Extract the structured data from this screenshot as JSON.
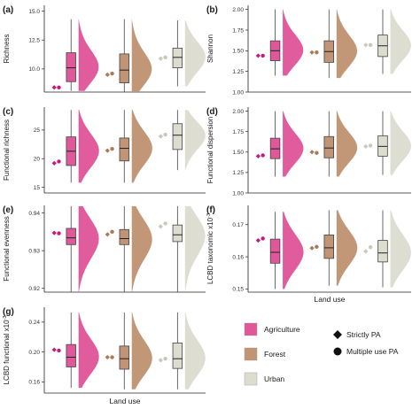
{
  "chart_data": [
    {
      "type": "raincloud",
      "panel": "(a)",
      "ylabel": "Richness",
      "ylim": [
        8.0,
        15.5
      ],
      "yticks": [
        "7.5",
        "10.0",
        "12.5",
        "15.0"
      ],
      "ytick_values": [
        7.5,
        10.0,
        12.5,
        15.0
      ],
      "xlabel": "",
      "categories": [
        "Agriculture",
        "Forest",
        "Urban"
      ],
      "box": [
        {
          "q1": 8.9,
          "median": 10.1,
          "q3": 11.4,
          "lo": 8.1,
          "hi": 14.3
        },
        {
          "q1": 8.8,
          "median": 9.9,
          "q3": 11.3,
          "lo": 8.0,
          "hi": 14.3
        },
        {
          "q1": 10.1,
          "median": 11.0,
          "q3": 11.8,
          "lo": 8.5,
          "hi": 14.2
        }
      ],
      "points": [
        {
          "strictly": 8.4,
          "multiple": 8.4
        },
        {
          "strictly": 9.5,
          "multiple": 9.6
        },
        {
          "strictly": 10.9,
          "multiple": 11.0
        }
      ]
    },
    {
      "type": "raincloud",
      "panel": "(b)",
      "ylabel": "Shannon",
      "ylim": [
        1.0,
        2.05
      ],
      "yticks": [
        "1.00",
        "1.25",
        "1.50",
        "1.75",
        "2.00"
      ],
      "ytick_values": [
        1.0,
        1.25,
        1.5,
        1.75,
        2.0
      ],
      "xlabel": "",
      "categories": [
        "Agriculture",
        "Forest",
        "Urban"
      ],
      "box": [
        {
          "q1": 1.38,
          "median": 1.5,
          "q3": 1.62,
          "lo": 1.2,
          "hi": 2.0
        },
        {
          "q1": 1.36,
          "median": 1.49,
          "q3": 1.62,
          "lo": 1.17,
          "hi": 2.0
        },
        {
          "q1": 1.43,
          "median": 1.56,
          "q3": 1.69,
          "lo": 1.22,
          "hi": 2.0
        }
      ],
      "points": [
        {
          "strictly": 1.44,
          "multiple": 1.44
        },
        {
          "strictly": 1.48,
          "multiple": 1.48
        },
        {
          "strictly": 1.57,
          "multiple": 1.57
        }
      ]
    },
    {
      "type": "raincloud",
      "panel": "(c)",
      "ylabel": "Functional richness",
      "ylim": [
        14.0,
        29.0
      ],
      "yticks": [
        "15",
        "20",
        "25"
      ],
      "ytick_values": [
        15,
        20,
        25
      ],
      "xlabel": "",
      "categories": [
        "Agriculture",
        "Forest",
        "Urban"
      ],
      "box": [
        {
          "q1": 18.8,
          "median": 21.3,
          "q3": 23.8,
          "lo": 15.8,
          "hi": 28.5
        },
        {
          "q1": 19.6,
          "median": 21.8,
          "q3": 23.6,
          "lo": 15.8,
          "hi": 28.5
        },
        {
          "q1": 21.6,
          "median": 24.1,
          "q3": 26.1,
          "lo": 18.0,
          "hi": 28.5
        }
      ],
      "points": [
        {
          "strictly": 19.2,
          "multiple": 19.5
        },
        {
          "strictly": 21.4,
          "multiple": 21.7
        },
        {
          "strictly": 23.9,
          "multiple": 24.2
        }
      ]
    },
    {
      "type": "raincloud",
      "panel": "(d)",
      "ylabel": "Functional dispersion",
      "ylim": [
        1.0,
        2.05
      ],
      "yticks": [
        "1.00",
        "1.25",
        "1.50",
        "1.75",
        "2.00"
      ],
      "ytick_values": [
        1.0,
        1.25,
        1.5,
        1.75,
        2.0
      ],
      "xlabel": "",
      "categories": [
        "Agriculture",
        "Forest",
        "Urban"
      ],
      "box": [
        {
          "q1": 1.42,
          "median": 1.54,
          "q3": 1.67,
          "lo": 1.2,
          "hi": 2.0
        },
        {
          "q1": 1.43,
          "median": 1.55,
          "q3": 1.69,
          "lo": 1.2,
          "hi": 2.0
        },
        {
          "q1": 1.45,
          "median": 1.57,
          "q3": 1.7,
          "lo": 1.22,
          "hi": 2.0
        }
      ],
      "points": [
        {
          "strictly": 1.45,
          "multiple": 1.46
        },
        {
          "strictly": 1.5,
          "multiple": 1.49
        },
        {
          "strictly": 1.57,
          "multiple": 1.58
        }
      ]
    },
    {
      "type": "raincloud",
      "panel": "(e)",
      "ylabel": "Functional evenness",
      "ylim": [
        0.919,
        0.942
      ],
      "yticks": [
        "0.92",
        "0.93",
        "0.94"
      ],
      "ytick_values": [
        0.92,
        0.93,
        0.94
      ],
      "xlabel": "",
      "categories": [
        "Agriculture",
        "Forest",
        "Urban"
      ],
      "box": [
        {
          "q1": 0.9316,
          "median": 0.9334,
          "q3": 0.9359,
          "lo": 0.919,
          "hi": 0.9418
        },
        {
          "q1": 0.9316,
          "median": 0.9332,
          "q3": 0.9356,
          "lo": 0.919,
          "hi": 0.9418
        },
        {
          "q1": 0.9324,
          "median": 0.9342,
          "q3": 0.9368,
          "lo": 0.919,
          "hi": 0.9418
        }
      ],
      "points": [
        {
          "strictly": 0.9347,
          "multiple": 0.9346
        },
        {
          "strictly": 0.9343,
          "multiple": 0.935
        },
        {
          "strictly": 0.9364,
          "multiple": 0.9372
        }
      ]
    },
    {
      "type": "raincloud",
      "panel": "(f)",
      "ylabel": "LCBD taxonomic x10",
      "ylabel_superscript": "-3",
      "ylim": [
        0.149,
        0.176
      ],
      "yticks": [
        "0.15",
        "0.16",
        "0.17"
      ],
      "ytick_values": [
        0.15,
        0.16,
        0.17
      ],
      "xlabel": "Land use",
      "categories": [
        "Agriculture",
        "Forest",
        "Urban"
      ],
      "box": [
        {
          "q1": 0.158,
          "median": 0.1614,
          "q3": 0.1655,
          "lo": 0.15,
          "hi": 0.174
        },
        {
          "q1": 0.1595,
          "median": 0.1628,
          "q3": 0.1668,
          "lo": 0.151,
          "hi": 0.1745
        },
        {
          "q1": 0.1584,
          "median": 0.1612,
          "q3": 0.1651,
          "lo": 0.1505,
          "hi": 0.1745
        }
      ],
      "points": [
        {
          "strictly": 0.1651,
          "multiple": 0.1657
        },
        {
          "strictly": 0.1627,
          "multiple": 0.1631
        },
        {
          "strictly": 0.1617,
          "multiple": 0.163
        }
      ]
    },
    {
      "type": "raincloud",
      "panel": "(g)",
      "ylabel": "LCBD functional x10",
      "ylabel_superscript": "-3",
      "ylim": [
        0.145,
        0.26
      ],
      "yticks": [
        "0.16",
        "0.20",
        "0.24"
      ],
      "ytick_values": [
        0.16,
        0.2,
        0.24
      ],
      "xlabel": "Land use",
      "categories": [
        "Agriculture",
        "Forest",
        "Urban"
      ],
      "box": [
        {
          "q1": 0.18,
          "median": 0.193,
          "q3": 0.21,
          "lo": 0.152,
          "hi": 0.253
        },
        {
          "q1": 0.177,
          "median": 0.191,
          "q3": 0.208,
          "lo": 0.15,
          "hi": 0.253
        },
        {
          "q1": 0.178,
          "median": 0.191,
          "q3": 0.212,
          "lo": 0.15,
          "hi": 0.253
        }
      ],
      "points": [
        {
          "strictly": 0.203,
          "multiple": 0.202
        },
        {
          "strictly": 0.193,
          "multiple": 0.193
        },
        {
          "strictly": 0.189,
          "multiple": 0.191
        }
      ]
    }
  ],
  "legend": {
    "land_use": [
      {
        "label": "Agriculture",
        "color": "#e0579a"
      },
      {
        "label": "Forest",
        "color": "#c09474"
      },
      {
        "label": "Urban",
        "color": "#dcdccf"
      }
    ],
    "protection": [
      {
        "label": "Strictly PA",
        "shape": "diamond"
      },
      {
        "label": "Multiple use PA",
        "shape": "circle"
      }
    ]
  },
  "colors": {
    "Agriculture": "#e0579a",
    "Forest": "#c09474",
    "Urban": "#dcdccf",
    "point_Agriculture": "#c8187c",
    "point_Forest": "#a87a56",
    "point_Urban": "#c7c8ba"
  }
}
